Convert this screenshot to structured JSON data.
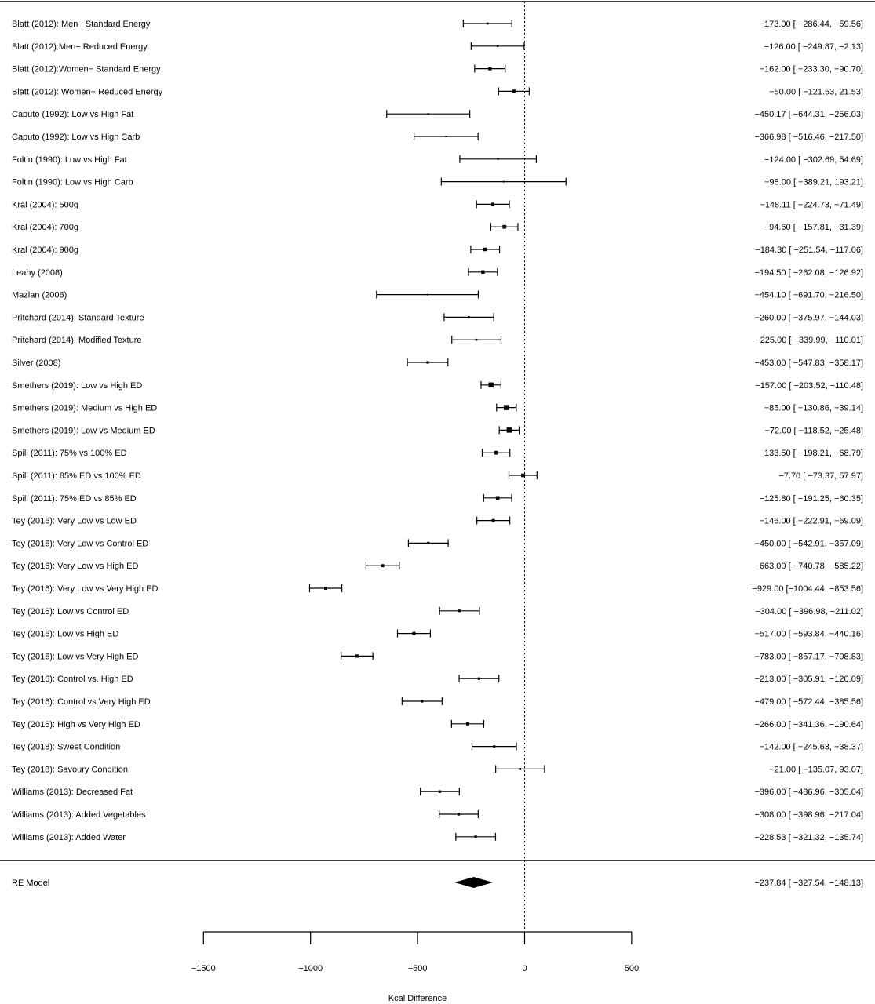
{
  "chart_data": {
    "type": "forest",
    "xlabel": "Kcal Difference",
    "xlim": [
      -1500,
      500
    ],
    "xticks": [
      -1500,
      -1000,
      -500,
      0,
      500
    ],
    "xtick_labels": [
      "−1500",
      "−1000",
      "−500",
      "0",
      "500"
    ],
    "reference_line": 0,
    "studies": [
      {
        "label": "Blatt (2012): Men− Standard Energy",
        "est": -173.0,
        "lo": -286.44,
        "hi": -59.56,
        "ci_text": "−173.00 [ −286.44,  −59.56]"
      },
      {
        "label": "Blatt (2012):Men− Reduced Energy",
        "est": -126.0,
        "lo": -249.87,
        "hi": -2.13,
        "ci_text": "−126.00 [ −249.87,   −2.13]"
      },
      {
        "label": "Blatt (2012):Women− Standard Energy",
        "est": -162.0,
        "lo": -233.3,
        "hi": -90.7,
        "ci_text": "−162.00 [ −233.30,  −90.70]"
      },
      {
        "label": "Blatt (2012): Women− Reduced Energy",
        "est": -50.0,
        "lo": -121.53,
        "hi": 21.53,
        "ci_text": "−50.00 [ −121.53,   21.53]"
      },
      {
        "label": "Caputo (1992): Low vs High Fat",
        "est": -450.17,
        "lo": -644.31,
        "hi": -256.03,
        "ci_text": "−450.17 [ −644.31, −256.03]"
      },
      {
        "label": "Caputo (1992): Low vs High Carb",
        "est": -366.98,
        "lo": -516.46,
        "hi": -217.5,
        "ci_text": "−366.98 [ −516.46, −217.50]"
      },
      {
        "label": "Foltin (1990): Low vs High Fat",
        "est": -124.0,
        "lo": -302.69,
        "hi": 54.69,
        "ci_text": "−124.00 [ −302.69,   54.69]"
      },
      {
        "label": "Foltin (1990): Low vs High Carb",
        "est": -98.0,
        "lo": -389.21,
        "hi": 193.21,
        "ci_text": "−98.00 [ −389.21,  193.21]"
      },
      {
        "label": "Kral (2004): 500g",
        "est": -148.11,
        "lo": -224.73,
        "hi": -71.49,
        "ci_text": "−148.11 [ −224.73,  −71.49]"
      },
      {
        "label": "Kral (2004): 700g",
        "est": -94.6,
        "lo": -157.81,
        "hi": -31.39,
        "ci_text": "−94.60 [ −157.81,  −31.39]"
      },
      {
        "label": "Kral (2004): 900g",
        "est": -184.3,
        "lo": -251.54,
        "hi": -117.06,
        "ci_text": "−184.30 [ −251.54, −117.06]"
      },
      {
        "label": "Leahy (2008)",
        "est": -194.5,
        "lo": -262.08,
        "hi": -126.92,
        "ci_text": "−194.50 [ −262.08, −126.92]"
      },
      {
        "label": "Mazlan (2006)",
        "est": -454.1,
        "lo": -691.7,
        "hi": -216.5,
        "ci_text": "−454.10 [ −691.70, −216.50]"
      },
      {
        "label": "Pritchard (2014): Standard Texture",
        "est": -260.0,
        "lo": -375.97,
        "hi": -144.03,
        "ci_text": "−260.00 [ −375.97, −144.03]"
      },
      {
        "label": "Pritchard (2014): Modified Texture",
        "est": -225.0,
        "lo": -339.99,
        "hi": -110.01,
        "ci_text": "−225.00 [ −339.99, −110.01]"
      },
      {
        "label": "Silver (2008)",
        "est": -453.0,
        "lo": -547.83,
        "hi": -358.17,
        "ci_text": "−453.00 [ −547.83, −358.17]"
      },
      {
        "label": "Smethers (2019): Low vs High ED",
        "est": -157.0,
        "lo": -203.52,
        "hi": -110.48,
        "ci_text": "−157.00 [ −203.52, −110.48]"
      },
      {
        "label": "Smethers (2019): Medium vs High ED",
        "est": -85.0,
        "lo": -130.86,
        "hi": -39.14,
        "ci_text": "−85.00 [ −130.86,  −39.14]"
      },
      {
        "label": "Smethers (2019): Low vs Medium ED",
        "est": -72.0,
        "lo": -118.52,
        "hi": -25.48,
        "ci_text": "−72.00 [ −118.52,  −25.48]"
      },
      {
        "label": "Spill (2011): 75% vs 100% ED",
        "est": -133.5,
        "lo": -198.21,
        "hi": -68.79,
        "ci_text": "−133.50 [ −198.21,  −68.79]"
      },
      {
        "label": "Spill (2011): 85% ED vs 100% ED",
        "est": -7.7,
        "lo": -73.37,
        "hi": 57.97,
        "ci_text": "−7.70 [  −73.37,   57.97]"
      },
      {
        "label": "Spill (2011): 75% ED vs 85% ED",
        "est": -125.8,
        "lo": -191.25,
        "hi": -60.35,
        "ci_text": "−125.80 [ −191.25,  −60.35]"
      },
      {
        "label": "Tey (2016): Very Low vs Low ED",
        "est": -146.0,
        "lo": -222.91,
        "hi": -69.09,
        "ci_text": "−146.00 [ −222.91,  −69.09]"
      },
      {
        "label": "Tey (2016): Very Low vs Control ED",
        "est": -450.0,
        "lo": -542.91,
        "hi": -357.09,
        "ci_text": "−450.00 [ −542.91, −357.09]"
      },
      {
        "label": "Tey (2016): Very Low vs High ED",
        "est": -663.0,
        "lo": -740.78,
        "hi": -585.22,
        "ci_text": "−663.00 [ −740.78, −585.22]"
      },
      {
        "label": "Tey (2016): Very Low vs Very High ED",
        "est": -929.0,
        "lo": -1004.44,
        "hi": -853.56,
        "ci_text": "−929.00 [−1004.44, −853.56]"
      },
      {
        "label": "Tey (2016): Low vs Control ED",
        "est": -304.0,
        "lo": -396.98,
        "hi": -211.02,
        "ci_text": "−304.00 [ −396.98, −211.02]"
      },
      {
        "label": "Tey (2016): Low vs High ED",
        "est": -517.0,
        "lo": -593.84,
        "hi": -440.16,
        "ci_text": "−517.00 [ −593.84, −440.16]"
      },
      {
        "label": "Tey (2016): Low vs Very High ED",
        "est": -783.0,
        "lo": -857.17,
        "hi": -708.83,
        "ci_text": "−783.00 [ −857.17, −708.83]"
      },
      {
        "label": "Tey (2016): Control vs. High ED",
        "est": -213.0,
        "lo": -305.91,
        "hi": -120.09,
        "ci_text": "−213.00 [ −305.91, −120.09]"
      },
      {
        "label": "Tey (2016): Control vs Very High ED",
        "est": -479.0,
        "lo": -572.44,
        "hi": -385.56,
        "ci_text": "−479.00 [ −572.44, −385.56]"
      },
      {
        "label": "Tey (2016): High vs Very High ED",
        "est": -266.0,
        "lo": -341.36,
        "hi": -190.64,
        "ci_text": "−266.00 [ −341.36, −190.64]"
      },
      {
        "label": "Tey (2018): Sweet Condition",
        "est": -142.0,
        "lo": -245.63,
        "hi": -38.37,
        "ci_text": "−142.00 [ −245.63,  −38.37]"
      },
      {
        "label": "Tey (2018): Savoury Condition",
        "est": -21.0,
        "lo": -135.07,
        "hi": 93.07,
        "ci_text": "−21.00 [ −135.07,   93.07]"
      },
      {
        "label": "Williams (2013): Decreased Fat",
        "est": -396.0,
        "lo": -486.96,
        "hi": -305.04,
        "ci_text": "−396.00 [ −486.96, −305.04]"
      },
      {
        "label": "Williams (2013): Added Vegetables",
        "est": -308.0,
        "lo": -398.96,
        "hi": -217.04,
        "ci_text": "−308.00 [ −398.96, −217.04]"
      },
      {
        "label": "Williams (2013): Added Water",
        "est": -228.53,
        "lo": -321.32,
        "hi": -135.74,
        "ci_text": "−228.53 [ −321.32, −135.74]"
      }
    ],
    "summary": {
      "label": "RE Model",
      "est": -237.84,
      "lo": -327.54,
      "hi": -148.13,
      "ci_text": "−237.84 [ −327.54, −148.13]"
    }
  }
}
